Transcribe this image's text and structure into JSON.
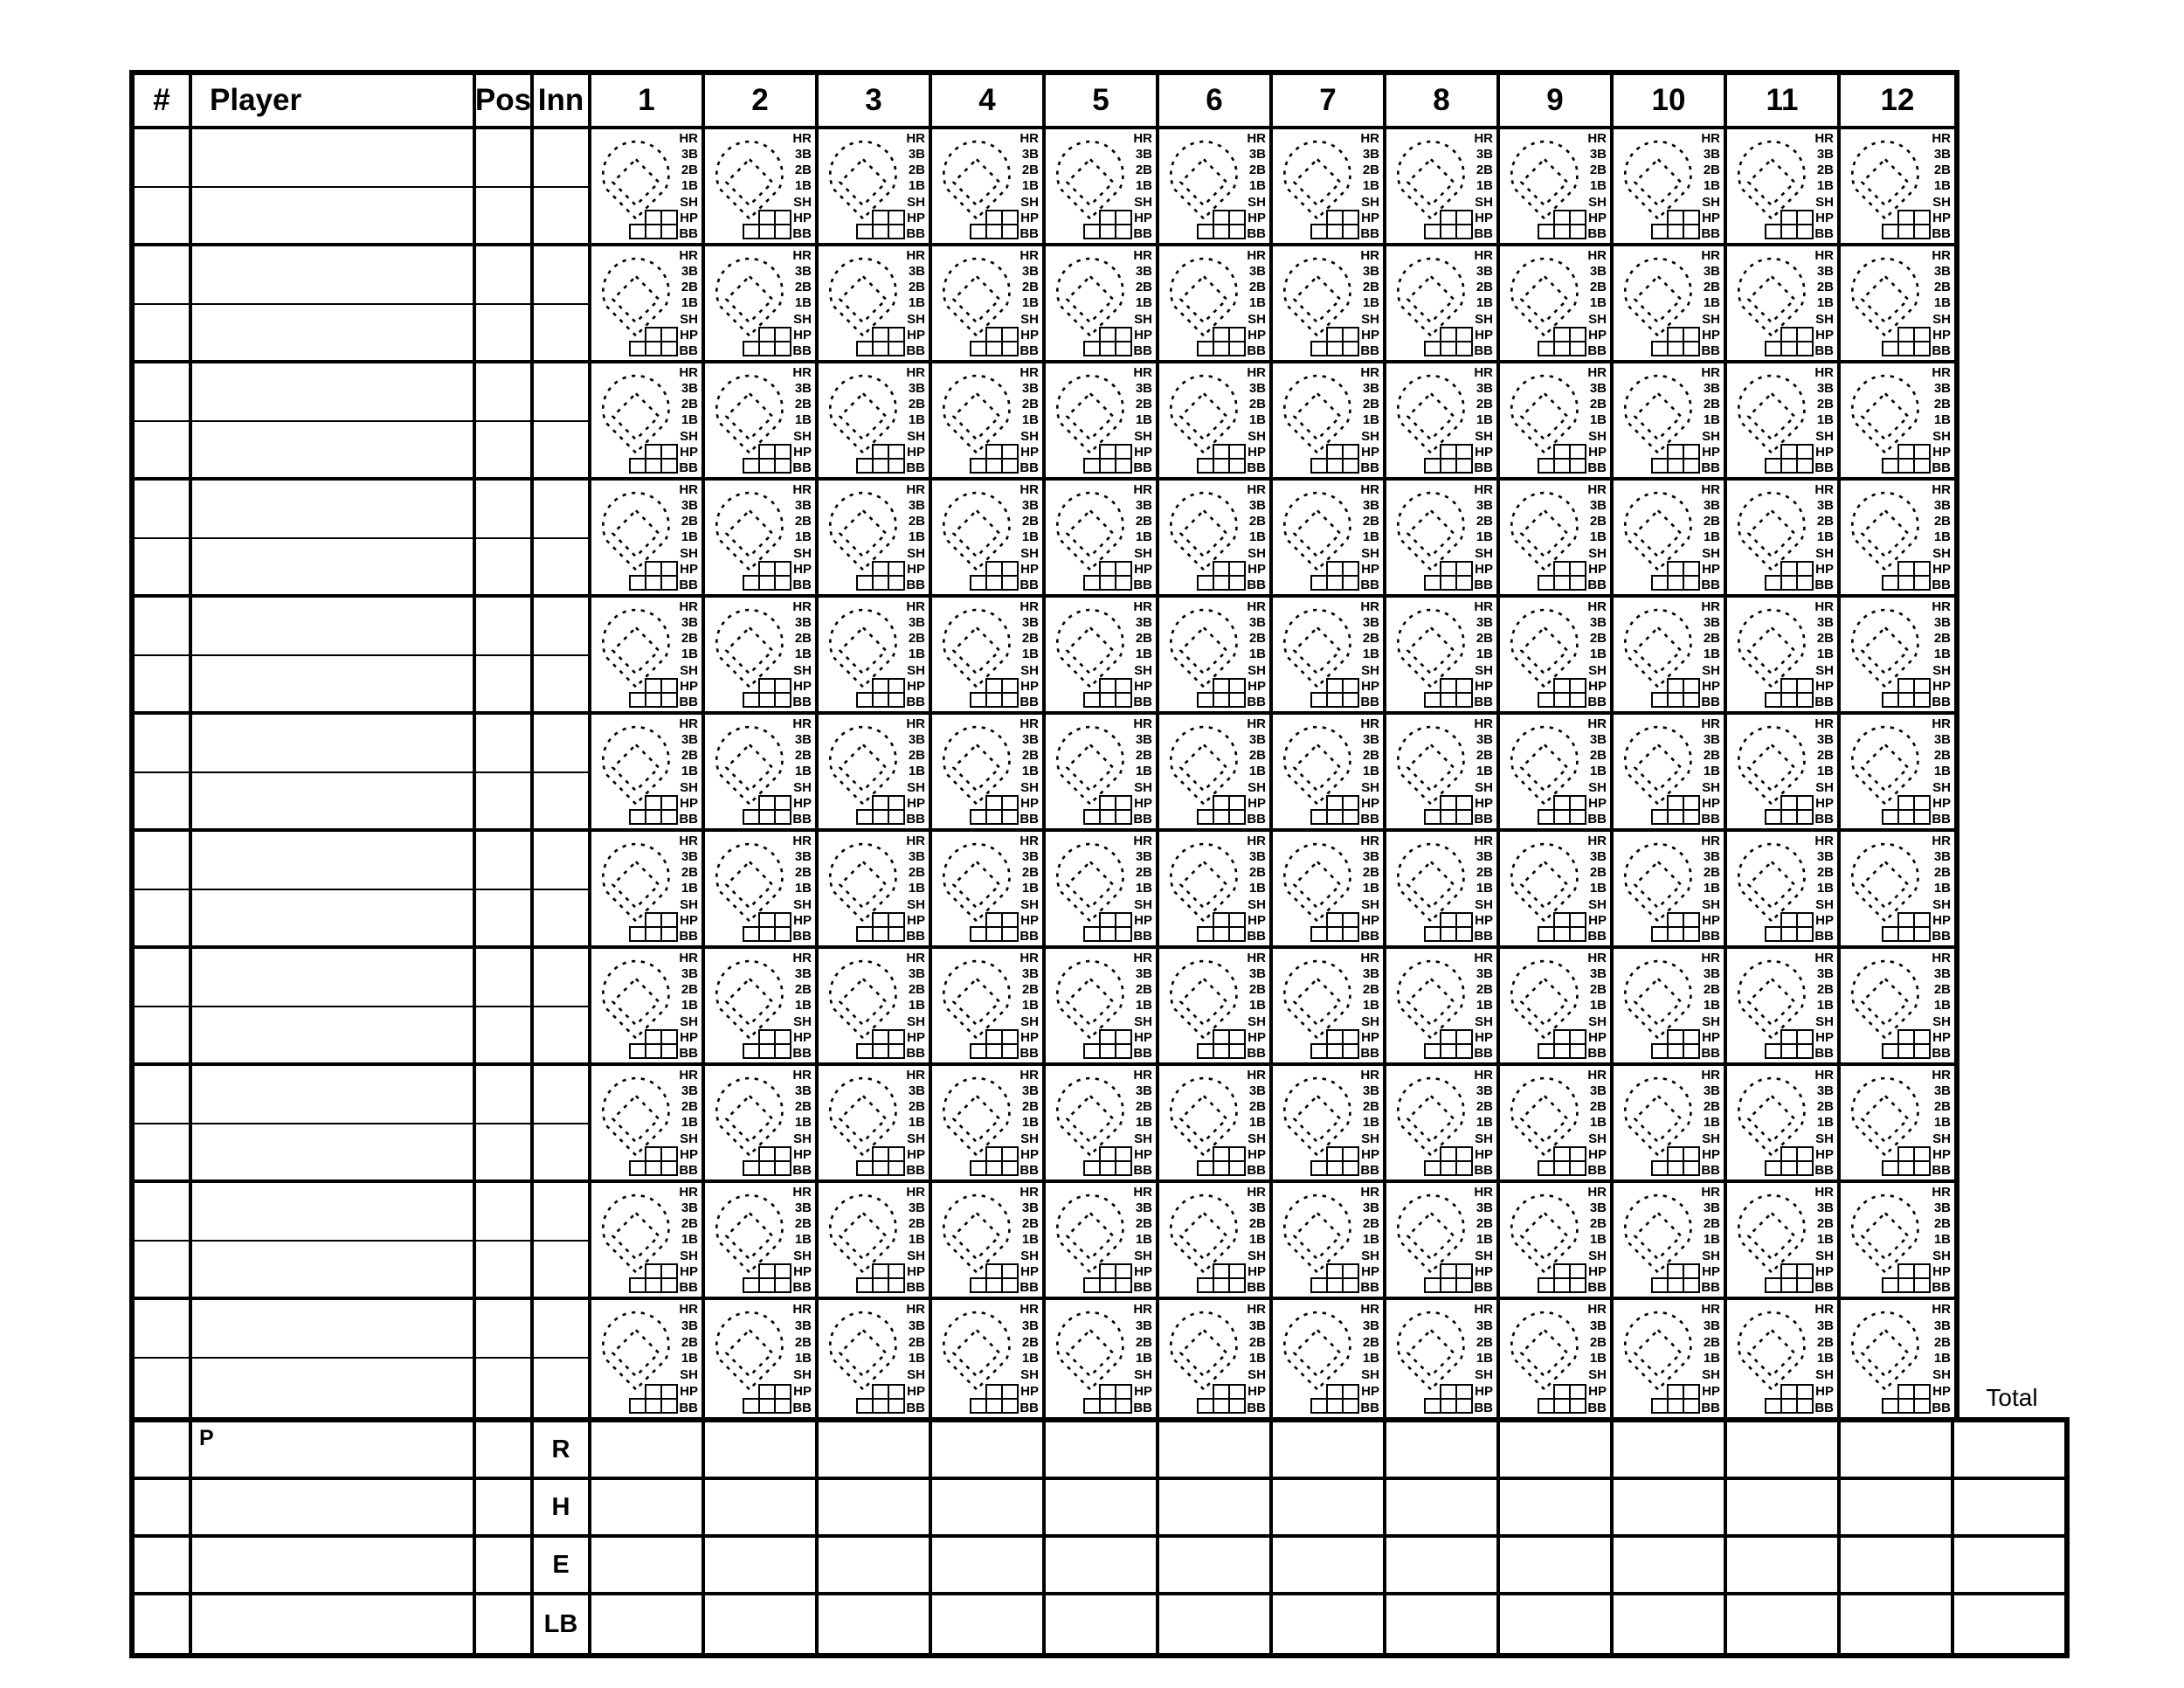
{
  "header": {
    "number": "#",
    "player": "Player",
    "position": "Pos",
    "inning": "Inn",
    "innings": [
      "1",
      "2",
      "3",
      "4",
      "5",
      "6",
      "7",
      "8",
      "9",
      "10",
      "11",
      "12"
    ]
  },
  "scorebox": {
    "result_labels": [
      "HR",
      "3B",
      "2B",
      "1B",
      "SH",
      "HP",
      "BB"
    ]
  },
  "layout": {
    "player_rows": 11,
    "inning_columns": 12
  },
  "summary": {
    "pitcher_label": "P",
    "row_labels": [
      "R",
      "H",
      "E",
      "LB"
    ],
    "total_label": "Total"
  },
  "colors": {
    "ink": "#000000",
    "paper": "#ffffff"
  }
}
